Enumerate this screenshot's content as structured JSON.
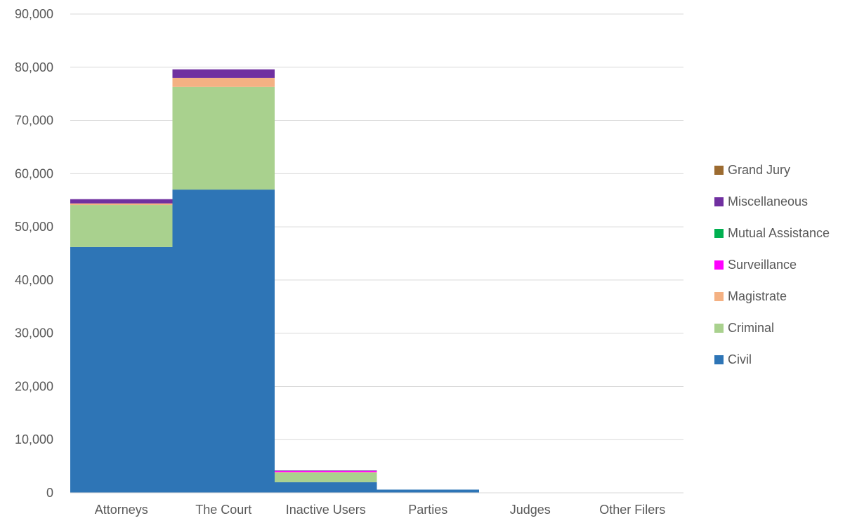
{
  "chart_data": {
    "type": "bar",
    "stacked": true,
    "categories": [
      "Attorneys",
      "The Court",
      "Inactive Users",
      "Parties",
      "Judges",
      "Other Filers"
    ],
    "series": [
      {
        "name": "Civil",
        "color": "#2E75B6",
        "values": [
          46200,
          57000,
          2000,
          600,
          0,
          0
        ]
      },
      {
        "name": "Criminal",
        "color": "#A9D18E",
        "values": [
          7900,
          19300,
          1800,
          0,
          0,
          0
        ]
      },
      {
        "name": "Magistrate",
        "color": "#F4B183",
        "values": [
          300,
          1700,
          100,
          0,
          0,
          0
        ]
      },
      {
        "name": "Surveillance",
        "color": "#FF00FF",
        "values": [
          0,
          0,
          200,
          0,
          0,
          0
        ]
      },
      {
        "name": "Mutual Assistance",
        "color": "#00B050",
        "values": [
          0,
          0,
          0,
          0,
          0,
          0
        ]
      },
      {
        "name": "Miscellaneous",
        "color": "#7030A0",
        "values": [
          800,
          1600,
          100,
          0,
          0,
          0
        ]
      },
      {
        "name": "Grand Jury",
        "color": "#9C6B30",
        "values": [
          0,
          0,
          0,
          0,
          0,
          0
        ]
      }
    ],
    "yticks": [
      "0",
      "10,000",
      "20,000",
      "30,000",
      "40,000",
      "50,000",
      "60,000",
      "70,000",
      "80,000",
      "90,000"
    ],
    "ylim": [
      0,
      90000
    ],
    "grid": true,
    "legend_position": "right",
    "legend_order": [
      "Grand Jury",
      "Miscellaneous",
      "Mutual Assistance",
      "Surveillance",
      "Magistrate",
      "Criminal",
      "Civil"
    ]
  }
}
